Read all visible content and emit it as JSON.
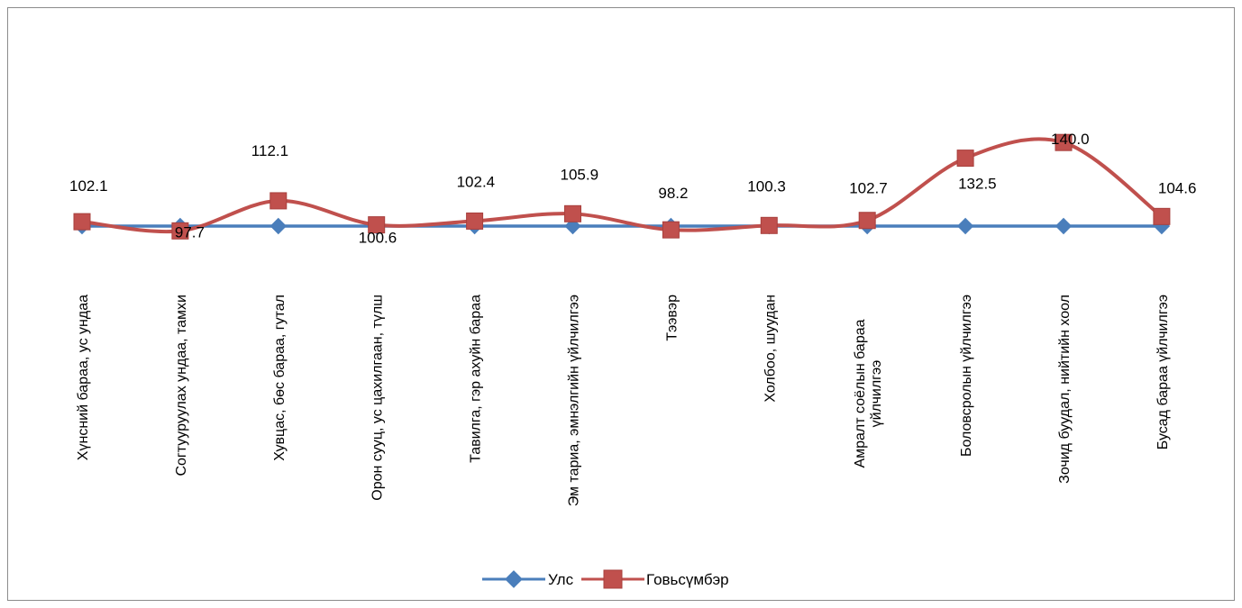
{
  "chart_data": {
    "type": "line",
    "title": "",
    "xlabel": "",
    "ylabel": "",
    "categories": [
      [
        "Хүнсний бараа, ус ундаа"
      ],
      [
        "Согтууруулах ундаа, тамхи"
      ],
      [
        "Хувцас, бөс бараа, гутал"
      ],
      [
        "Орон сууц, ус цахилгаан, түлш"
      ],
      [
        "Тавилга, гэр ахуйн бараа"
      ],
      [
        "Эм тариа, эмнэлгийн үйлчилгээ"
      ],
      [
        "Тээвэр"
      ],
      [
        "Холбоо, шуудан"
      ],
      [
        "Амралт соёлын бараа",
        "үйлчилгээ"
      ],
      [
        "Боловсролын үйлчилгээ"
      ],
      [
        "Зочид буудал, нийтийн хоол"
      ],
      [
        "Бусад бараа үйлчилгээ"
      ]
    ],
    "series": [
      {
        "name": "Улс",
        "color": "#4a7ebb",
        "values": [
          100,
          100,
          100,
          100,
          100,
          100,
          100,
          100,
          100,
          100,
          100,
          100
        ]
      },
      {
        "name": "Говьсүмбэр",
        "color": "#c0504d",
        "values": [
          102.1,
          97.7,
          112.1,
          100.6,
          102.4,
          105.9,
          98.2,
          100.3,
          102.7,
          132.5,
          140.0,
          104.6
        ],
        "labels": [
          "102.1",
          "97.7",
          "112.1",
          "100.6",
          "102.4",
          "105.9",
          "98.2",
          "100.3",
          "102.7",
          "132.5",
          "140.0",
          "104.6"
        ]
      }
    ],
    "ylim": [
      80,
      140
    ],
    "grid": false,
    "legend": "bottom"
  }
}
